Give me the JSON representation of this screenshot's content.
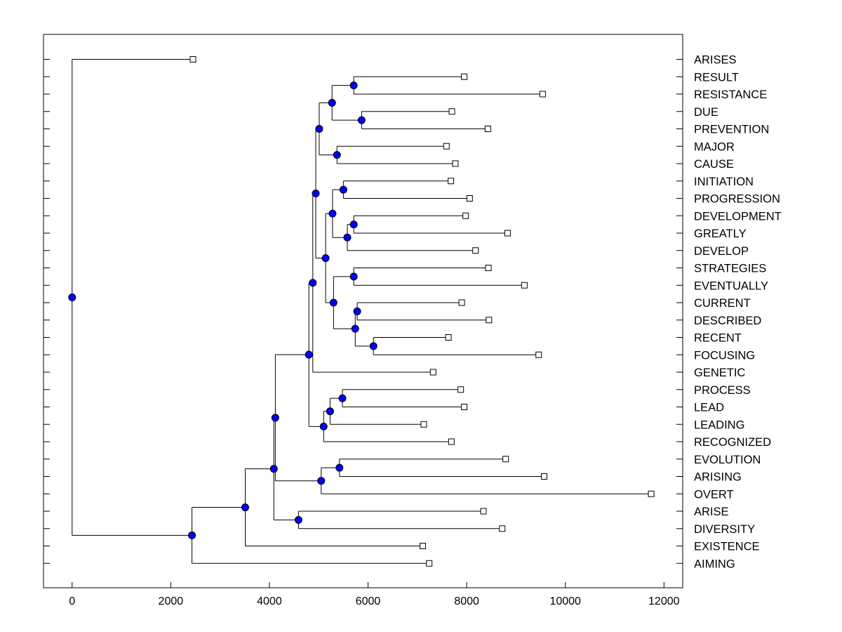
{
  "chart_data": {
    "type": "dendrogram",
    "title": "",
    "xlabel": "",
    "ylabel": "",
    "xlim": [
      -580,
      12380
    ],
    "xticks": [
      0,
      2000,
      4000,
      6000,
      8000,
      10000,
      12000
    ],
    "grid": false,
    "legend": "none",
    "colors": {
      "node": "#0000ff",
      "line": "#000000",
      "leaf": "#ffffff"
    },
    "leaves": [
      {
        "name": "ARISES",
        "x": 2450
      },
      {
        "name": "RESULT",
        "x": 7950
      },
      {
        "name": "RESISTANCE",
        "x": 9540
      },
      {
        "name": "DUE",
        "x": 7700
      },
      {
        "name": "PREVENTION",
        "x": 8430
      },
      {
        "name": "MAJOR",
        "x": 7590
      },
      {
        "name": "CAUSE",
        "x": 7770
      },
      {
        "name": "INITIATION",
        "x": 7680
      },
      {
        "name": "PROGRESSION",
        "x": 8060
      },
      {
        "name": "DEVELOPMENT",
        "x": 7980
      },
      {
        "name": "GREATLY",
        "x": 8830
      },
      {
        "name": "DEVELOP",
        "x": 8180
      },
      {
        "name": "STRATEGIES",
        "x": 8440
      },
      {
        "name": "EVENTUALLY",
        "x": 9170
      },
      {
        "name": "CURRENT",
        "x": 7900
      },
      {
        "name": "DESCRIBED",
        "x": 8450
      },
      {
        "name": "RECENT",
        "x": 7630
      },
      {
        "name": "FOCUSING",
        "x": 9460
      },
      {
        "name": "GENETIC",
        "x": 7320
      },
      {
        "name": "PROCESS",
        "x": 7880
      },
      {
        "name": "LEAD",
        "x": 7950
      },
      {
        "name": "LEADING",
        "x": 7130
      },
      {
        "name": "RECOGNIZED",
        "x": 7690
      },
      {
        "name": "EVOLUTION",
        "x": 8790
      },
      {
        "name": "ARISING",
        "x": 9570
      },
      {
        "name": "OVERT",
        "x": 11740
      },
      {
        "name": "ARISE",
        "x": 8340
      },
      {
        "name": "DIVERSITY",
        "x": 8720
      },
      {
        "name": "EXISTENCE",
        "x": 7110
      },
      {
        "name": "AIMING",
        "x": 7240
      }
    ],
    "merges": [
      {
        "id": "n1",
        "x": 5710,
        "children": [
          "RESULT",
          "RESISTANCE"
        ]
      },
      {
        "id": "n2",
        "x": 5870,
        "children": [
          "DUE",
          "PREVENTION"
        ]
      },
      {
        "id": "n3",
        "x": 5270,
        "children": [
          "n1",
          "n2"
        ]
      },
      {
        "id": "n4",
        "x": 5370,
        "children": [
          "MAJOR",
          "CAUSE"
        ]
      },
      {
        "id": "n5",
        "x": 5010,
        "children": [
          "n3",
          "n4"
        ]
      },
      {
        "id": "n6",
        "x": 5500,
        "children": [
          "INITIATION",
          "PROGRESSION"
        ]
      },
      {
        "id": "n7",
        "x": 5710,
        "children": [
          "DEVELOPMENT",
          "GREATLY"
        ]
      },
      {
        "id": "n8",
        "x": 5580,
        "children": [
          "n7",
          "DEVELOP"
        ]
      },
      {
        "id": "n9",
        "x": 5280,
        "children": [
          "n6",
          "n8"
        ]
      },
      {
        "id": "n10",
        "x": 5710,
        "children": [
          "STRATEGIES",
          "EVENTUALLY"
        ]
      },
      {
        "id": "n11",
        "x": 5780,
        "children": [
          "CURRENT",
          "DESCRIBED"
        ]
      },
      {
        "id": "n12",
        "x": 6110,
        "children": [
          "RECENT",
          "FOCUSING"
        ]
      },
      {
        "id": "n13",
        "x": 5740,
        "children": [
          "n11",
          "n12"
        ]
      },
      {
        "id": "n14",
        "x": 5300,
        "children": [
          "n10",
          "n13"
        ]
      },
      {
        "id": "n15",
        "x": 5140,
        "children": [
          "n9",
          "n14"
        ]
      },
      {
        "id": "n16",
        "x": 4940,
        "children": [
          "n5",
          "n15"
        ]
      },
      {
        "id": "n17",
        "x": 4880,
        "children": [
          "n16",
          "GENETIC"
        ]
      },
      {
        "id": "n18",
        "x": 5480,
        "children": [
          "PROCESS",
          "LEAD"
        ]
      },
      {
        "id": "n19",
        "x": 5230,
        "children": [
          "n18",
          "LEADING"
        ]
      },
      {
        "id": "n20",
        "x": 5100,
        "children": [
          "n19",
          "RECOGNIZED"
        ]
      },
      {
        "id": "n21",
        "x": 4800,
        "children": [
          "n17",
          "n20"
        ]
      },
      {
        "id": "n22",
        "x": 5420,
        "children": [
          "EVOLUTION",
          "ARISING"
        ]
      },
      {
        "id": "n23",
        "x": 5050,
        "children": [
          "n22",
          "OVERT"
        ]
      },
      {
        "id": "n24",
        "x": 4120,
        "children": [
          "n21",
          "n23"
        ]
      },
      {
        "id": "n25",
        "x": 4590,
        "children": [
          "ARISE",
          "DIVERSITY"
        ]
      },
      {
        "id": "n26",
        "x": 4090,
        "children": [
          "n24",
          "n25"
        ]
      },
      {
        "id": "n27",
        "x": 3510,
        "children": [
          "n26",
          "EXISTENCE"
        ]
      },
      {
        "id": "n28",
        "x": 2430,
        "children": [
          "n27",
          "AIMING"
        ]
      },
      {
        "id": "n29",
        "x": 0,
        "children": [
          "ARISES",
          "n28"
        ]
      }
    ]
  }
}
